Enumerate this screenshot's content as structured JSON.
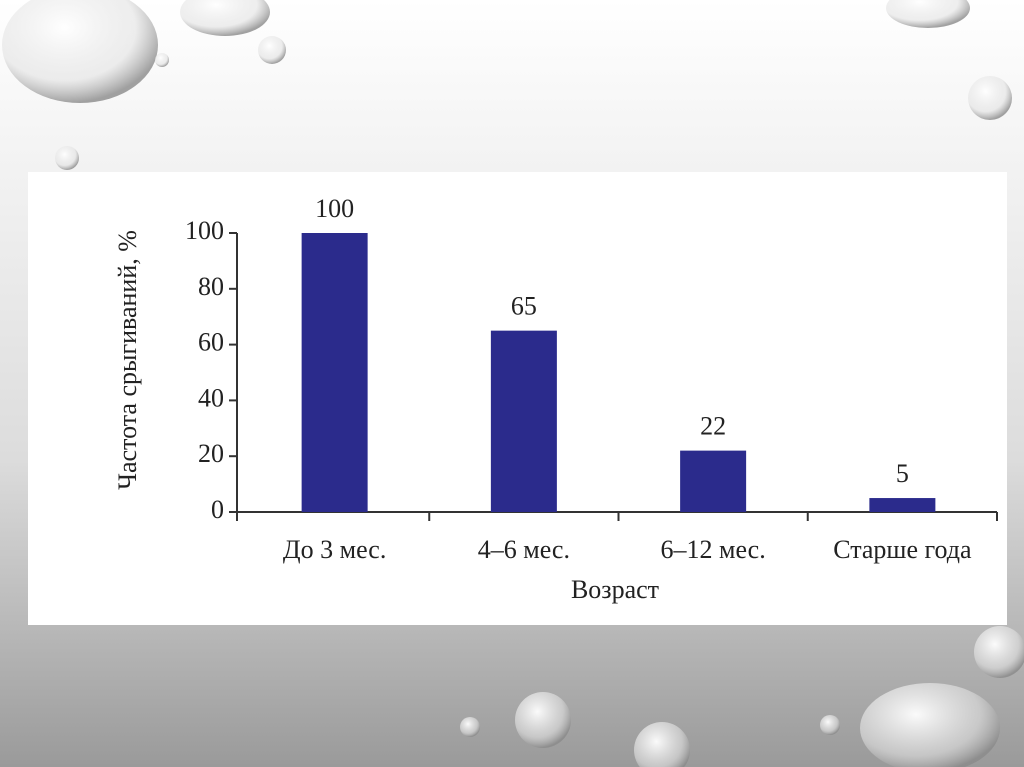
{
  "chart_data": {
    "type": "bar",
    "categories": [
      "До 3 мес.",
      "4–6 мес.",
      "6–12 мес.",
      "Старше года"
    ],
    "values": [
      100,
      65,
      22,
      5
    ],
    "color": "#2b2b8c",
    "x_label": "Возраст",
    "y_label": "Частота срыгиваний, %",
    "ylim": [
      0,
      100
    ],
    "yticks": [
      0,
      20,
      40,
      60,
      80,
      100
    ],
    "grid": false,
    "data_labels": true
  }
}
